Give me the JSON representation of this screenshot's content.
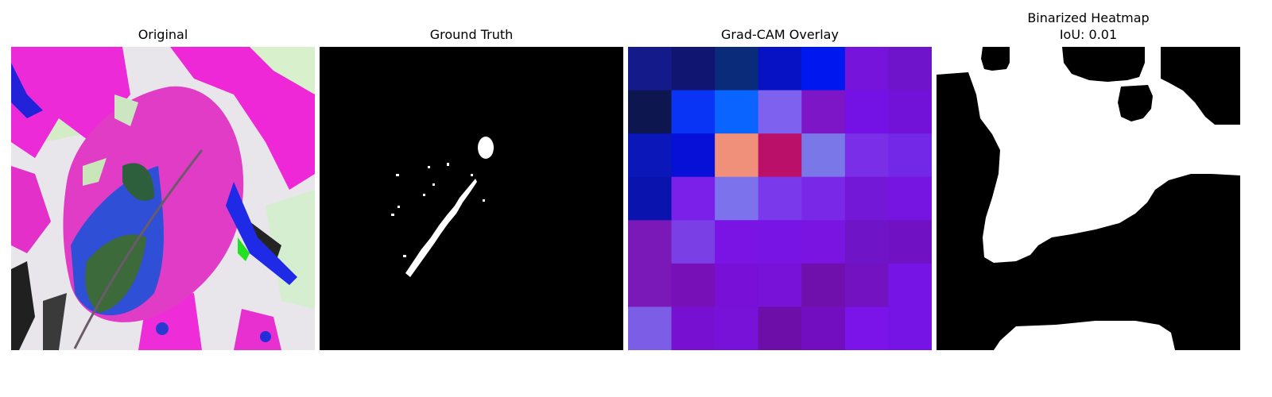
{
  "figure": {
    "panels": [
      {
        "title": "Original",
        "image": "leaf-photo"
      },
      {
        "title": "Ground Truth",
        "image": "binary-mask"
      },
      {
        "title": "Grad-CAM Overlay",
        "image": "gradcam-heatmap"
      },
      {
        "title": "Binarized Heatmap",
        "subtitle": "IoU: 0.01",
        "image": "binarized-heatmap-mask"
      }
    ],
    "gradcam_grid": [
      [
        "#141a8a",
        "#0f1570",
        "#0a2a7a",
        "#0612c4",
        "#0018f0",
        "#7614dc",
        "#7014cc"
      ],
      [
        "#0e1650",
        "#0a34f5",
        "#0a64ff",
        "#7e62ef",
        "#7c16c6",
        "#7412e6",
        "#7212d8"
      ],
      [
        "#0b17b8",
        "#0610d6",
        "#f0907a",
        "#ba106a",
        "#7a78e8",
        "#7a2ee8",
        "#7228e6"
      ],
      [
        "#0a13ae",
        "#7a20e8",
        "#7c72ec",
        "#7a3aec",
        "#7a28e8",
        "#7418d8",
        "#7614e2"
      ],
      [
        "#7a18b8",
        "#7a40e6",
        "#7a14e4",
        "#7814e4",
        "#7a14e0",
        "#7014c8",
        "#7012c4"
      ],
      [
        "#7a18b8",
        "#7810b8",
        "#7810d8",
        "#7812d8",
        "#7010ac",
        "#7212c0",
        "#7614e6"
      ],
      [
        "#7c5ee6",
        "#7810d2",
        "#7812d8",
        "#6e0ea8",
        "#720ec0",
        "#7a14e8",
        "#7614e6"
      ]
    ]
  }
}
